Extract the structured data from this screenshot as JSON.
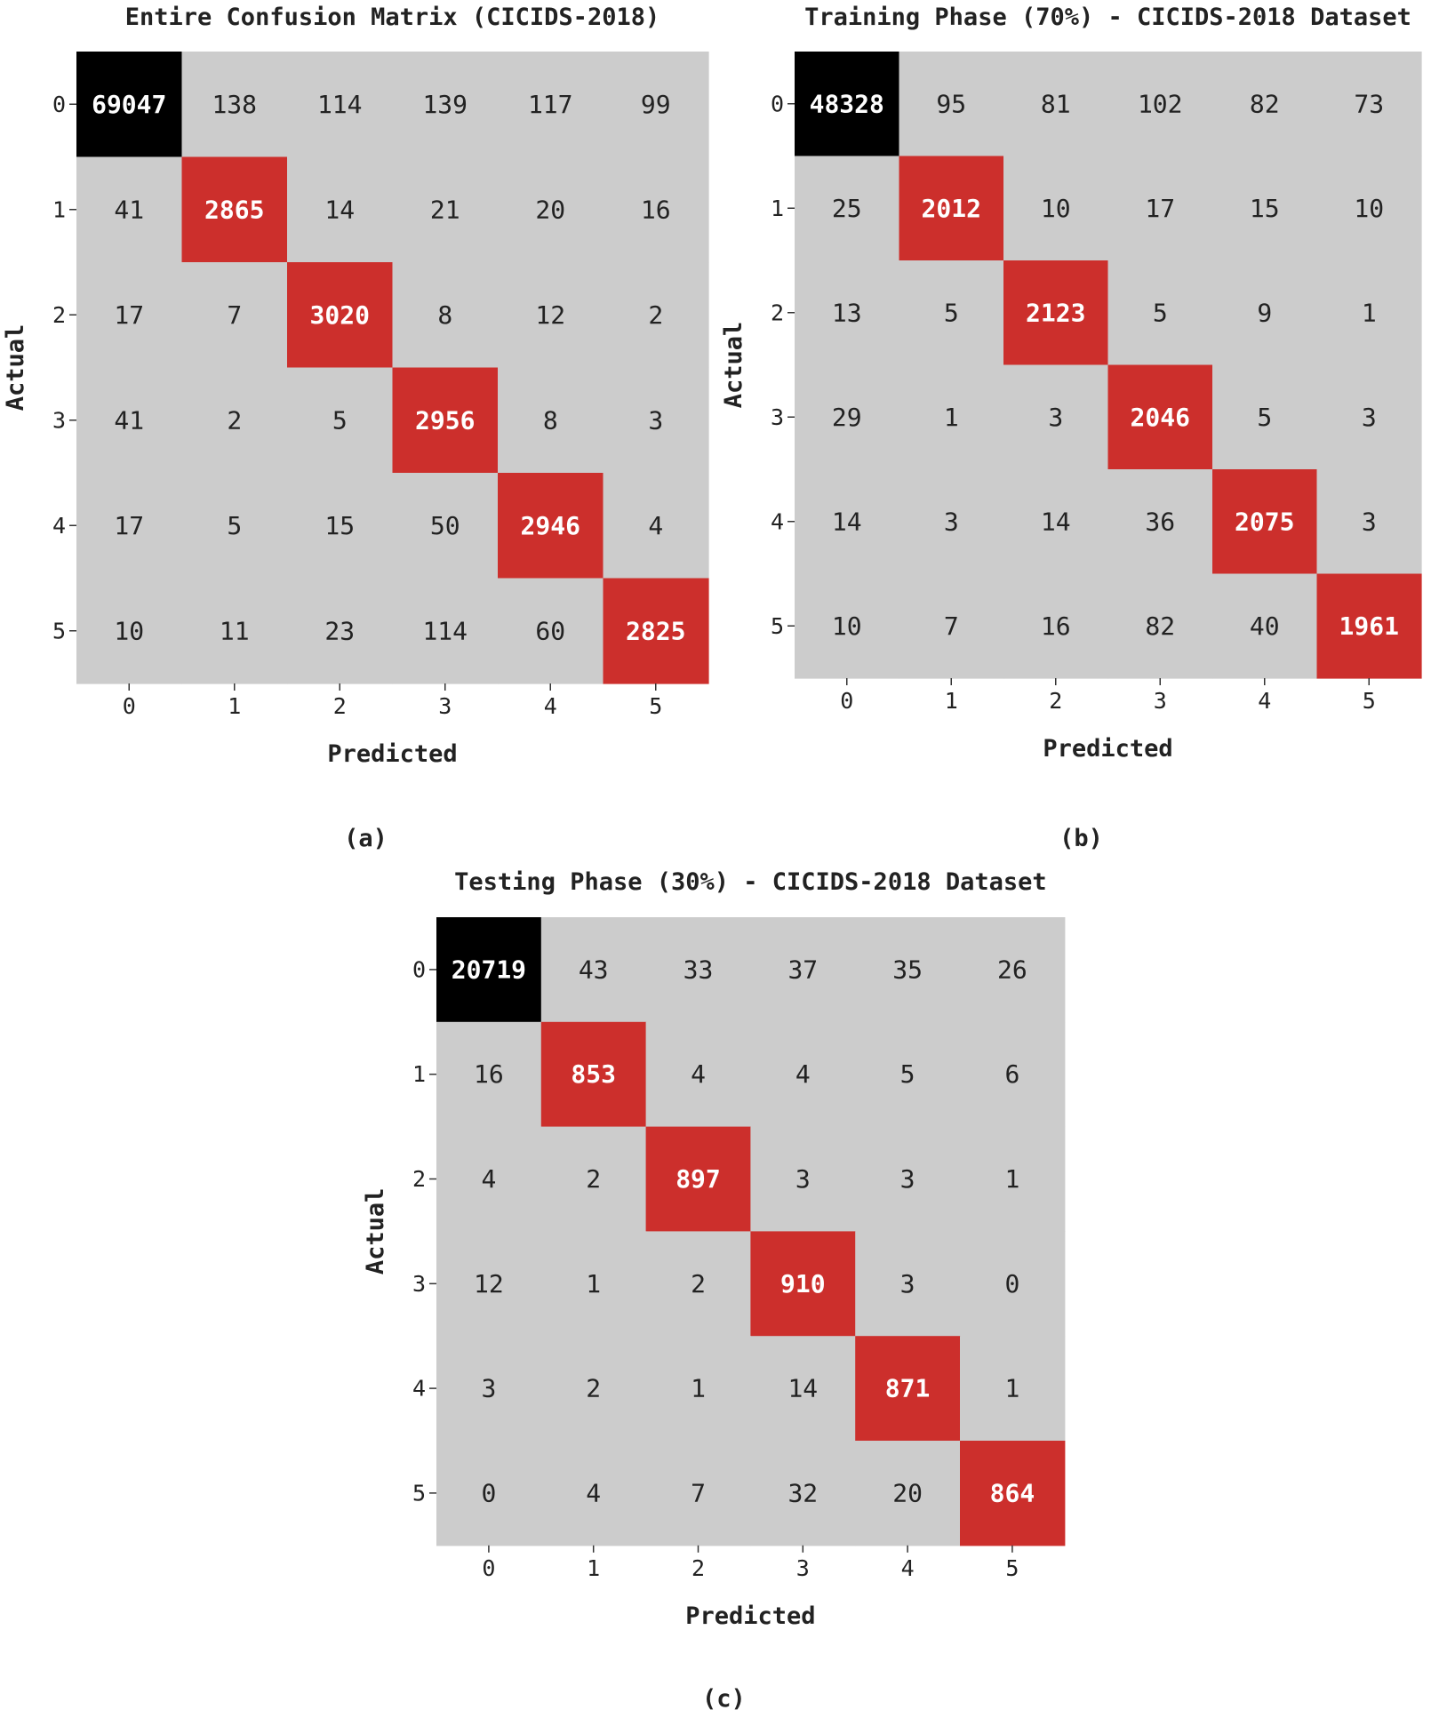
{
  "chart_data": [
    {
      "type": "heatmap",
      "title": "Entire Confusion Matrix (CICIDS-2018)",
      "xlabel": "Predicted",
      "ylabel": "Actual",
      "caption": "(a)",
      "x_categories": [
        "0",
        "1",
        "2",
        "3",
        "4",
        "5"
      ],
      "y_categories": [
        "0",
        "1",
        "2",
        "3",
        "4",
        "5"
      ],
      "values": [
        [
          69047,
          138,
          114,
          139,
          117,
          99
        ],
        [
          41,
          2865,
          14,
          21,
          20,
          16
        ],
        [
          17,
          7,
          3020,
          8,
          12,
          2
        ],
        [
          41,
          2,
          5,
          2956,
          8,
          3
        ],
        [
          17,
          5,
          15,
          50,
          2946,
          4
        ],
        [
          10,
          11,
          23,
          114,
          60,
          2825
        ]
      ]
    },
    {
      "type": "heatmap",
      "title": "Training Phase (70%) - CICIDS-2018 Dataset",
      "xlabel": "Predicted",
      "ylabel": "Actual",
      "caption": "(b)",
      "x_categories": [
        "0",
        "1",
        "2",
        "3",
        "4",
        "5"
      ],
      "y_categories": [
        "0",
        "1",
        "2",
        "3",
        "4",
        "5"
      ],
      "values": [
        [
          48328,
          95,
          81,
          102,
          82,
          73
        ],
        [
          25,
          2012,
          10,
          17,
          15,
          10
        ],
        [
          13,
          5,
          2123,
          5,
          9,
          1
        ],
        [
          29,
          1,
          3,
          2046,
          5,
          3
        ],
        [
          14,
          3,
          14,
          36,
          2075,
          3
        ],
        [
          10,
          7,
          16,
          82,
          40,
          1961
        ]
      ]
    },
    {
      "type": "heatmap",
      "title": "Testing Phase (30%) - CICIDS-2018 Dataset",
      "xlabel": "Predicted",
      "ylabel": "Actual",
      "caption": "(c)",
      "x_categories": [
        "0",
        "1",
        "2",
        "3",
        "4",
        "5"
      ],
      "y_categories": [
        "0",
        "1",
        "2",
        "3",
        "4",
        "5"
      ],
      "values": [
        [
          20719,
          43,
          33,
          37,
          35,
          26
        ],
        [
          16,
          853,
          4,
          4,
          5,
          6
        ],
        [
          4,
          2,
          897,
          3,
          3,
          1
        ],
        [
          12,
          1,
          2,
          910,
          3,
          0
        ],
        [
          3,
          2,
          1,
          14,
          871,
          1
        ],
        [
          0,
          4,
          7,
          32,
          20,
          864
        ]
      ]
    }
  ],
  "colors": {
    "background_cell": "#cccccc",
    "diagonal_cell": "#cc2f2c",
    "max_cell": "#000000",
    "text_dark": "#222222",
    "text_light": "#ffffff"
  }
}
